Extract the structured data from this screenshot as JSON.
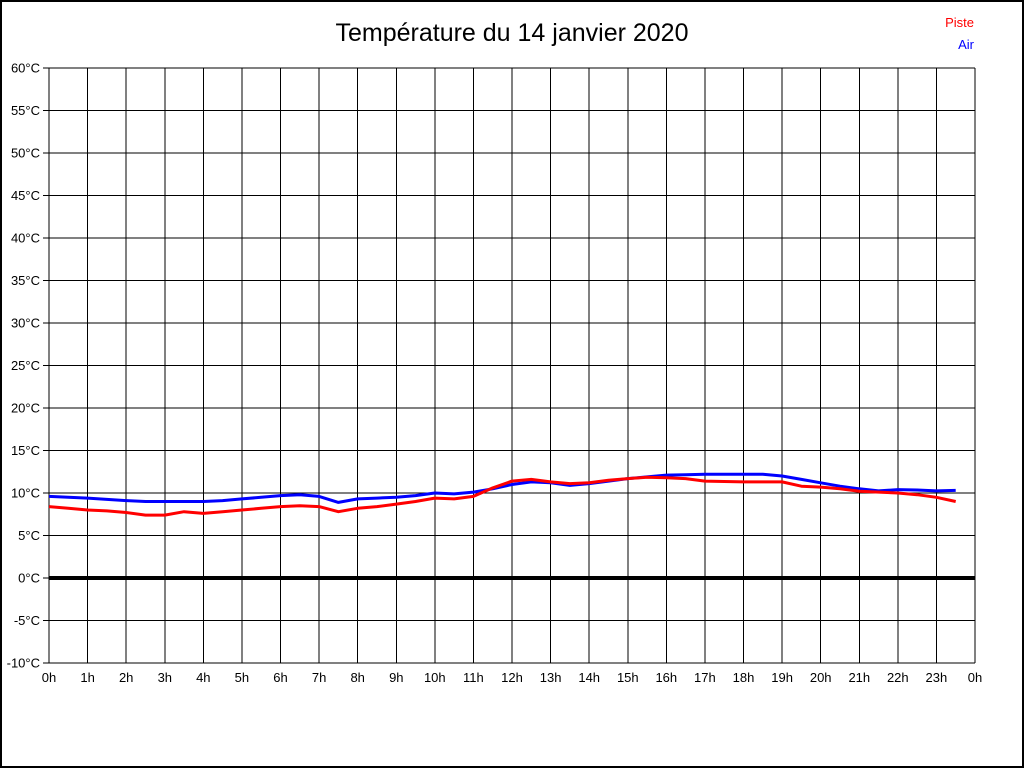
{
  "title": "Température du 14 janvier 2020",
  "legend": [
    {
      "label": "Piste",
      "color": "#ff0000"
    },
    {
      "label": "Air",
      "color": "#0000ff"
    }
  ],
  "chart_data": {
    "type": "line",
    "title": "Température du 14 janvier 2020",
    "x_unit": "hours",
    "xlim_hours": [
      0,
      24
    ],
    "ylim": [
      -10,
      60
    ],
    "y_step": 5,
    "grid": "on",
    "zero_line": "bold",
    "legend_position": "top-right",
    "x_tick_labels": [
      "0h",
      "1h",
      "2h",
      "3h",
      "4h",
      "5h",
      "6h",
      "7h",
      "8h",
      "9h",
      "10h",
      "11h",
      "12h",
      "13h",
      "14h",
      "15h",
      "16h",
      "17h",
      "18h",
      "19h",
      "20h",
      "21h",
      "22h",
      "23h",
      "0h"
    ],
    "y_tick_labels": [
      "60°C",
      "55°C",
      "50°C",
      "45°C",
      "40°C",
      "35°C",
      "30°C",
      "25°C",
      "20°C",
      "15°C",
      "10°C",
      "5°C",
      "0°C",
      "-5°C",
      "-10°C"
    ],
    "x": [
      0,
      0.5,
      1,
      1.5,
      2,
      2.5,
      3,
      3.5,
      4,
      4.5,
      5,
      5.5,
      6,
      6.5,
      7,
      7.5,
      8,
      8.5,
      9,
      9.5,
      10,
      10.5,
      11,
      11.5,
      12,
      12.5,
      13,
      13.5,
      14,
      14.5,
      15,
      15.5,
      16,
      16.5,
      17,
      17.5,
      18,
      18.5,
      19,
      19.5,
      20,
      20.5,
      21,
      21.5,
      22,
      22.5,
      23,
      23.5
    ],
    "series": [
      {
        "name": "Piste",
        "color": "#ff0000",
        "values": [
          8.4,
          8.2,
          8.0,
          7.9,
          7.7,
          7.4,
          7.4,
          7.8,
          7.6,
          7.8,
          8.0,
          8.2,
          8.4,
          8.5,
          8.4,
          7.8,
          8.2,
          8.4,
          8.7,
          9.0,
          9.4,
          9.3,
          9.6,
          10.6,
          11.4,
          11.6,
          11.3,
          11.1,
          11.2,
          11.5,
          11.7,
          11.85,
          11.8,
          11.7,
          11.4,
          11.35,
          11.3,
          11.3,
          11.3,
          10.8,
          10.7,
          10.5,
          10.2,
          10.1,
          10.0,
          9.8,
          9.5,
          9.0
        ]
      },
      {
        "name": "Air",
        "color": "#0000ff",
        "values": [
          9.6,
          9.5,
          9.4,
          9.25,
          9.1,
          9.0,
          9.0,
          9.0,
          9.0,
          9.1,
          9.3,
          9.5,
          9.7,
          9.8,
          9.6,
          8.9,
          9.3,
          9.4,
          9.5,
          9.7,
          10.0,
          9.9,
          10.1,
          10.5,
          11.0,
          11.3,
          11.2,
          10.9,
          11.1,
          11.4,
          11.7,
          11.9,
          12.1,
          12.15,
          12.2,
          12.2,
          12.2,
          12.2,
          12.0,
          11.6,
          11.2,
          10.8,
          10.5,
          10.25,
          10.4,
          10.35,
          10.25,
          10.3
        ]
      }
    ]
  }
}
